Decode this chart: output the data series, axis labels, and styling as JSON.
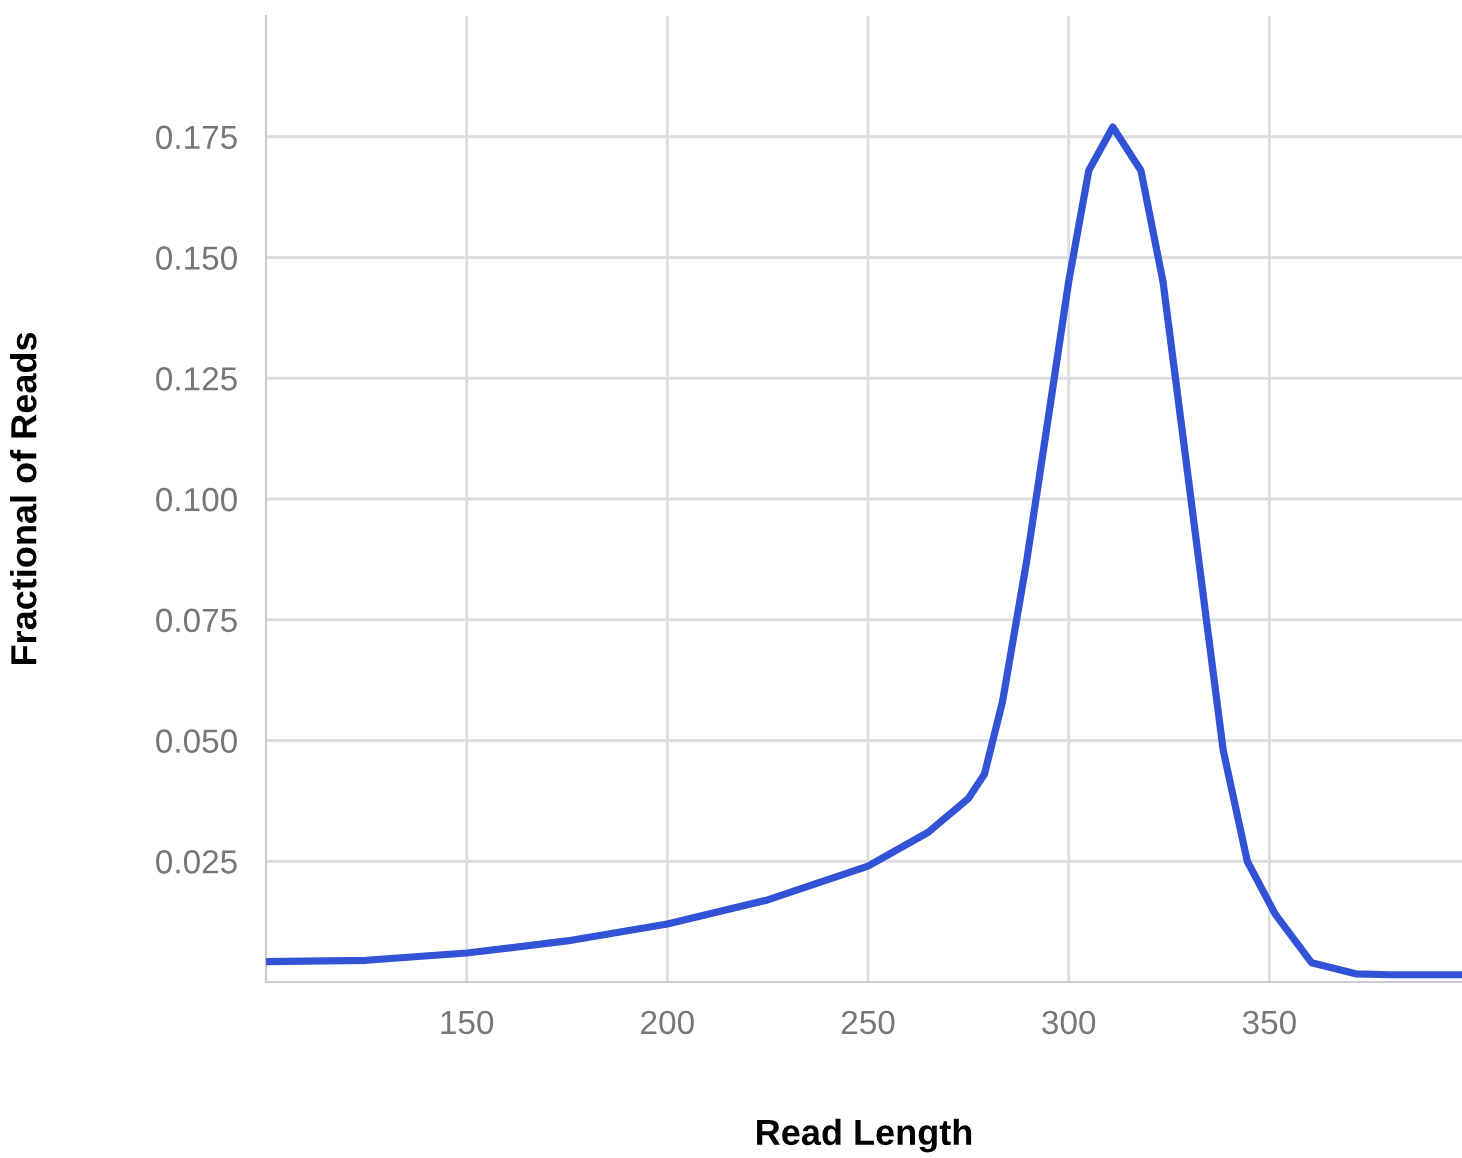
{
  "chart_data": {
    "type": "line",
    "xlabel": "Read Length",
    "ylabel": "Fractional of Reads",
    "x": [
      100,
      125,
      150,
      175,
      200,
      225,
      250,
      265,
      275,
      279,
      283.5,
      289.5,
      295.5,
      300,
      305,
      311,
      318,
      323.5,
      328,
      334,
      338.5,
      344.5,
      351.5,
      360.5,
      371.5,
      380,
      398
    ],
    "series": [
      {
        "color": "#3353d6",
        "values": [
          0.0042,
          0.0045,
          0.006,
          0.0085,
          0.012,
          0.017,
          0.024,
          0.031,
          0.038,
          0.043,
          0.058,
          0.087,
          0.12,
          0.145,
          0.168,
          0.177,
          0.168,
          0.145,
          0.116,
          0.077,
          0.048,
          0.025,
          0.014,
          0.004,
          0.0017,
          0.0015,
          0.0015
        ]
      }
    ],
    "xlim": [
      100,
      398
    ],
    "xticks": [
      150,
      200,
      250,
      300,
      350
    ],
    "ylim": [
      0,
      0.2
    ],
    "yticks": [
      {
        "value": 0.025,
        "label": "0.025"
      },
      {
        "value": 0.05,
        "label": "0.050"
      },
      {
        "value": 0.075,
        "label": "0.075"
      },
      {
        "value": 0.1,
        "label": "0.100"
      },
      {
        "value": 0.125,
        "label": "0.125"
      },
      {
        "value": 0.15,
        "label": "0.150"
      },
      {
        "value": 0.175,
        "label": "0.175"
      }
    ],
    "grid": true,
    "marker": "none",
    "line_style": "solid"
  }
}
